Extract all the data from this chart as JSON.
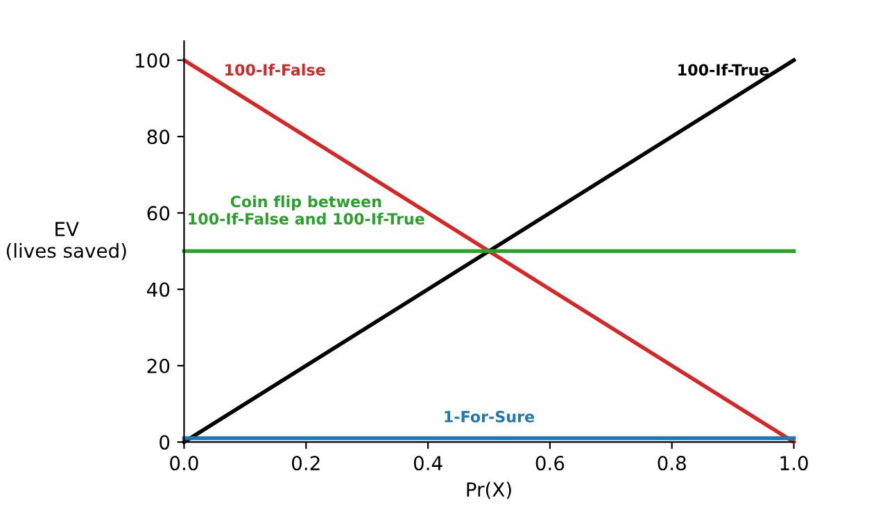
{
  "chart_data": {
    "type": "line",
    "xlabel": "Pr(X)",
    "ylabel": "EV\n(lives saved)",
    "x": [
      0,
      1
    ],
    "series": [
      {
        "name": "100-If-False",
        "color": "#d62728",
        "values": [
          100,
          0
        ]
      },
      {
        "name": "100-If-True",
        "color": "#000000",
        "values": [
          0,
          100
        ]
      },
      {
        "name": "Coin flip between\n100-If-False and 100-If-True",
        "color": "#2ca02c",
        "values": [
          50,
          50
        ]
      },
      {
        "name": "1-For-Sure",
        "color": "#1f77b4",
        "values": [
          1,
          1
        ]
      }
    ],
    "xlim": [
      0,
      1
    ],
    "ylim": [
      0,
      105
    ],
    "xticks": [
      {
        "value": 0,
        "label": "0.0"
      },
      {
        "value": 0.2,
        "label": "0.2"
      },
      {
        "value": 0.4,
        "label": "0.4"
      },
      {
        "value": 0.6,
        "label": "0.6"
      },
      {
        "value": 0.8,
        "label": "0.8"
      },
      {
        "value": 1,
        "label": "1.0"
      }
    ],
    "yticks": [
      0,
      20,
      40,
      60,
      80,
      100
    ],
    "grid": false,
    "legend": false,
    "line_style": "solid",
    "marker": "none"
  }
}
